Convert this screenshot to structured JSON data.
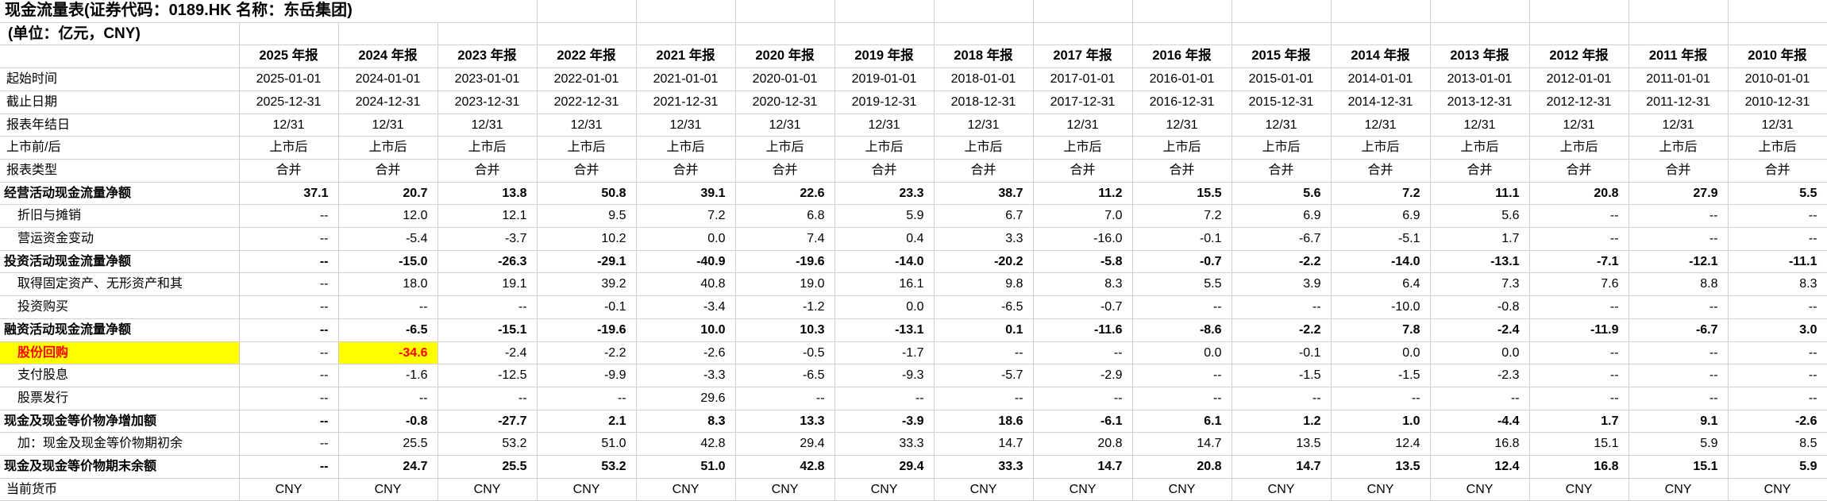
{
  "title": "现金流量表(证券代码：0189.HK 名称：东岳集团)",
  "subtitle": "(单位：亿元，CNY)",
  "colors": {
    "highlight": "#ffff00",
    "alert_text": "#ff0000",
    "grid": "#d0d0d0"
  },
  "columns": [
    "2025 年报",
    "2024 年报",
    "2023 年报",
    "2022 年报",
    "2021 年报",
    "2020 年报",
    "2019 年报",
    "2018 年报",
    "2017 年报",
    "2016 年报",
    "2015 年报",
    "2014 年报",
    "2013 年报",
    "2012 年报",
    "2011 年报",
    "2010 年报"
  ],
  "rows": [
    {
      "label": "起始时间",
      "type": "meta",
      "indent": "top",
      "values": [
        "2025-01-01",
        "2024-01-01",
        "2023-01-01",
        "2022-01-01",
        "2021-01-01",
        "2020-01-01",
        "2019-01-01",
        "2018-01-01",
        "2017-01-01",
        "2016-01-01",
        "2015-01-01",
        "2014-01-01",
        "2013-01-01",
        "2012-01-01",
        "2011-01-01",
        "2010-01-01"
      ]
    },
    {
      "label": "截止日期",
      "type": "meta",
      "indent": "top",
      "values": [
        "2025-12-31",
        "2024-12-31",
        "2023-12-31",
        "2022-12-31",
        "2021-12-31",
        "2020-12-31",
        "2019-12-31",
        "2018-12-31",
        "2017-12-31",
        "2016-12-31",
        "2015-12-31",
        "2014-12-31",
        "2013-12-31",
        "2012-12-31",
        "2011-12-31",
        "2010-12-31"
      ]
    },
    {
      "label": "报表年结日",
      "type": "meta",
      "indent": "top",
      "values": [
        "12/31",
        "12/31",
        "12/31",
        "12/31",
        "12/31",
        "12/31",
        "12/31",
        "12/31",
        "12/31",
        "12/31",
        "12/31",
        "12/31",
        "12/31",
        "12/31",
        "12/31",
        "12/31"
      ]
    },
    {
      "label": "上市前/后",
      "type": "meta",
      "indent": "top",
      "values": [
        "上市后",
        "上市后",
        "上市后",
        "上市后",
        "上市后",
        "上市后",
        "上市后",
        "上市后",
        "上市后",
        "上市后",
        "上市后",
        "上市后",
        "上市后",
        "上市后",
        "上市后",
        "上市后"
      ]
    },
    {
      "label": "报表类型",
      "type": "meta",
      "indent": "top",
      "values": [
        "合并",
        "合并",
        "合并",
        "合并",
        "合并",
        "合并",
        "合并",
        "合并",
        "合并",
        "合并",
        "合并",
        "合并",
        "合并",
        "合并",
        "合并",
        "合并"
      ]
    },
    {
      "label": "经营活动现金流量净额",
      "type": "num",
      "bold": true,
      "indent": "section",
      "values": [
        "37.1",
        "20.7",
        "13.8",
        "50.8",
        "39.1",
        "22.6",
        "23.3",
        "38.7",
        "11.2",
        "15.5",
        "5.6",
        "7.2",
        "11.1",
        "20.8",
        "27.9",
        "5.5"
      ]
    },
    {
      "label": "折旧与摊销",
      "type": "num",
      "indent": "sub",
      "values": [
        "--",
        "12.0",
        "12.1",
        "9.5",
        "7.2",
        "6.8",
        "5.9",
        "6.7",
        "7.0",
        "7.2",
        "6.9",
        "6.9",
        "5.6",
        "--",
        "--",
        "--"
      ]
    },
    {
      "label": "营运资金变动",
      "type": "num",
      "indent": "sub",
      "values": [
        "--",
        "-5.4",
        "-3.7",
        "10.2",
        "0.0",
        "7.4",
        "0.4",
        "3.3",
        "-16.0",
        "-0.1",
        "-6.7",
        "-5.1",
        "1.7",
        "--",
        "--",
        "--"
      ]
    },
    {
      "label": "投资活动现金流量净额",
      "type": "num",
      "bold": true,
      "indent": "section",
      "values": [
        "--",
        "-15.0",
        "-26.3",
        "-29.1",
        "-40.9",
        "-19.6",
        "-14.0",
        "-20.2",
        "-5.8",
        "-0.7",
        "-2.2",
        "-14.0",
        "-13.1",
        "-7.1",
        "-12.1",
        "-11.1"
      ]
    },
    {
      "label": "取得固定资产、无形资产和其",
      "type": "num",
      "indent": "sub",
      "values": [
        "--",
        "18.0",
        "19.1",
        "39.2",
        "40.8",
        "19.0",
        "16.1",
        "9.8",
        "8.3",
        "5.5",
        "3.9",
        "6.4",
        "7.3",
        "7.6",
        "8.8",
        "8.3"
      ]
    },
    {
      "label": "投资购买",
      "type": "num",
      "indent": "sub",
      "values": [
        "--",
        "--",
        "--",
        "-0.1",
        "-3.4",
        "-1.2",
        "0.0",
        "-6.5",
        "-0.7",
        "--",
        "--",
        "-10.0",
        "-0.8",
        "--",
        "--",
        "--"
      ]
    },
    {
      "label": "融资活动现金流量净额",
      "type": "num",
      "bold": true,
      "indent": "section",
      "values": [
        "--",
        "-6.5",
        "-15.1",
        "-19.6",
        "10.0",
        "10.3",
        "-13.1",
        "0.1",
        "-11.6",
        "-8.6",
        "-2.2",
        "7.8",
        "-2.4",
        "-11.9",
        "-6.7",
        "3.0"
      ]
    },
    {
      "label": "股份回购",
      "type": "num",
      "indent": "sub",
      "label_highlight": true,
      "label_red": true,
      "highlight_value_indexes": [
        1
      ],
      "values": [
        "--",
        "-34.6",
        "-2.4",
        "-2.2",
        "-2.6",
        "-0.5",
        "-1.7",
        "--",
        "--",
        "0.0",
        "-0.1",
        "0.0",
        "0.0",
        "--",
        "--",
        "--"
      ]
    },
    {
      "label": "支付股息",
      "type": "num",
      "indent": "sub",
      "values": [
        "--",
        "-1.6",
        "-12.5",
        "-9.9",
        "-3.3",
        "-6.5",
        "-9.3",
        "-5.7",
        "-2.9",
        "--",
        "-1.5",
        "-1.5",
        "-2.3",
        "--",
        "--",
        "--"
      ]
    },
    {
      "label": "股票发行",
      "type": "num",
      "indent": "sub",
      "values": [
        "--",
        "--",
        "--",
        "--",
        "29.6",
        "--",
        "--",
        "--",
        "--",
        "--",
        "--",
        "--",
        "--",
        "--",
        "--",
        "--"
      ]
    },
    {
      "label": "现金及现金等价物净增加额",
      "type": "num",
      "bold": true,
      "indent": "section",
      "values": [
        "--",
        "-0.8",
        "-27.7",
        "2.1",
        "8.3",
        "13.3",
        "-3.9",
        "18.6",
        "-6.1",
        "6.1",
        "1.2",
        "1.0",
        "-4.4",
        "1.7",
        "9.1",
        "-2.6"
      ]
    },
    {
      "label": "加：现金及现金等价物期初余",
      "type": "num",
      "indent": "sub",
      "values": [
        "--",
        "25.5",
        "53.2",
        "51.0",
        "42.8",
        "29.4",
        "33.3",
        "14.7",
        "20.8",
        "14.7",
        "13.5",
        "12.4",
        "16.8",
        "15.1",
        "5.9",
        "8.5"
      ]
    },
    {
      "label": "现金及现金等价物期末余额",
      "type": "num",
      "bold": true,
      "indent": "section",
      "values": [
        "--",
        "24.7",
        "25.5",
        "53.2",
        "51.0",
        "42.8",
        "29.4",
        "33.3",
        "14.7",
        "20.8",
        "14.7",
        "13.5",
        "12.4",
        "16.8",
        "15.1",
        "5.9"
      ]
    },
    {
      "label": "当前货币",
      "type": "meta",
      "indent": "top",
      "values": [
        "CNY",
        "CNY",
        "CNY",
        "CNY",
        "CNY",
        "CNY",
        "CNY",
        "CNY",
        "CNY",
        "CNY",
        "CNY",
        "CNY",
        "CNY",
        "CNY",
        "CNY",
        "CNY"
      ]
    }
  ],
  "layout": {
    "label_col_width": 301,
    "data_col_width": 125,
    "num_data_cols": 16
  }
}
